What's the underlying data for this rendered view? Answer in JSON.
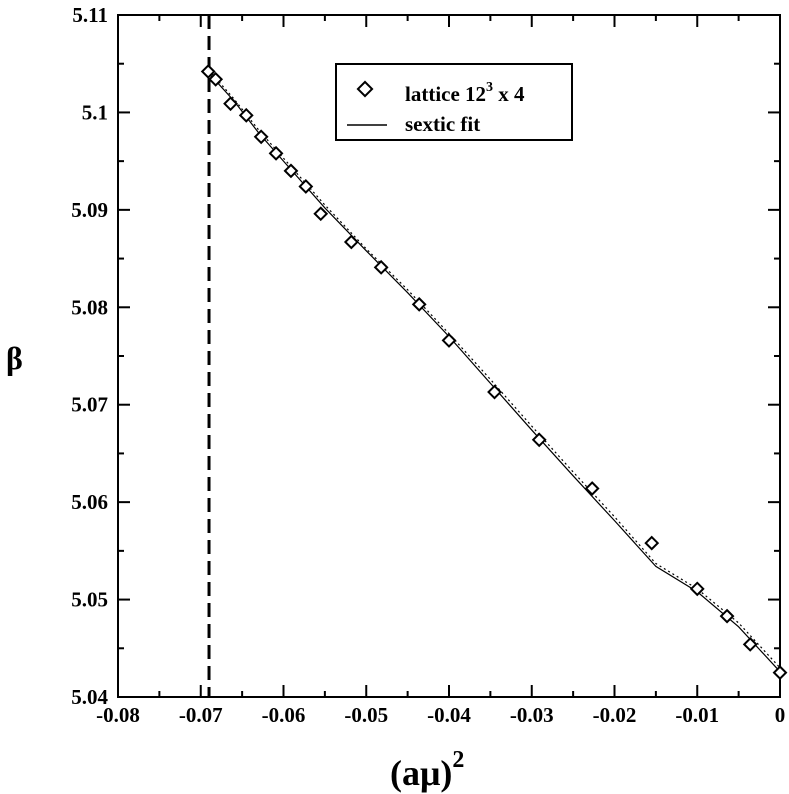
{
  "chart_data": {
    "type": "scatter",
    "xlabel_base": "(aμ)",
    "xlabel_sup": "2",
    "ylabel": "β",
    "xlim": [
      -0.08,
      0
    ],
    "ylim": [
      5.04,
      5.11
    ],
    "x_ticks": [
      -0.08,
      -0.07,
      -0.06,
      -0.05,
      -0.04,
      -0.03,
      -0.02,
      -0.01,
      0
    ],
    "x_tick_labels": [
      "-0.08",
      "-0.07",
      "-0.06",
      "-0.05",
      "-0.04",
      "-0.03",
      "-0.02",
      "-0.01",
      "0"
    ],
    "y_ticks": [
      5.04,
      5.05,
      5.06,
      5.07,
      5.08,
      5.09,
      5.1,
      5.11
    ],
    "y_tick_labels": [
      "5.04",
      "5.05",
      "5.06",
      "5.07",
      "5.08",
      "5.09",
      "5.1",
      "5.11"
    ],
    "grid": false,
    "legend_position": "top-right",
    "legend": [
      {
        "marker": "diamond",
        "label_base": "lattice 12",
        "label_sup": "3",
        "label_rest": " x 4"
      },
      {
        "marker": "line",
        "label": "sextic fit"
      }
    ],
    "vertical_dashed_line_x": -0.069,
    "series": [
      {
        "marker": "diamond",
        "x": [
          -0.0691,
          -0.0682,
          -0.0664,
          -0.0645,
          -0.0627,
          -0.0609,
          -0.0591,
          -0.0573,
          -0.0555,
          -0.0518,
          -0.0482,
          -0.0436,
          -0.04,
          -0.0345,
          -0.0291,
          -0.0227,
          -0.0155,
          -0.01,
          -0.0064,
          -0.0036,
          0
        ],
        "y": [
          5.1042,
          5.1034,
          5.1009,
          5.0997,
          5.0975,
          5.0958,
          5.094,
          5.0924,
          5.0896,
          5.0867,
          5.0841,
          5.0803,
          5.0766,
          5.0713,
          5.0664,
          5.0614,
          5.0558,
          5.0511,
          5.0483,
          5.0454,
          5.0425
        ]
      },
      {
        "line_style": "solid",
        "x": [
          -0.069,
          -0.066,
          -0.063,
          -0.06,
          -0.055,
          -0.05,
          -0.045,
          -0.04,
          -0.035,
          -0.03,
          -0.025,
          -0.02,
          -0.015,
          -0.01,
          -0.005,
          0
        ],
        "y": [
          5.104,
          5.1012,
          5.0979,
          5.095,
          5.0902,
          5.0858,
          5.0815,
          5.077,
          5.0722,
          5.0674,
          5.0627,
          5.0581,
          5.0534,
          5.0508,
          5.0472,
          5.0426
        ]
      },
      {
        "line_style": "dotted",
        "x": [
          -0.069,
          -0.066,
          -0.063,
          -0.06,
          -0.055,
          -0.05,
          -0.045,
          -0.04,
          -0.035,
          -0.03,
          -0.025,
          -0.02,
          -0.015,
          -0.01,
          -0.005,
          0
        ],
        "y": [
          5.1043,
          5.1014,
          5.0982,
          5.0953,
          5.0905,
          5.086,
          5.0818,
          5.0773,
          5.0726,
          5.0678,
          5.0631,
          5.0585,
          5.0537,
          5.0511,
          5.0476,
          5.043
        ]
      }
    ]
  }
}
